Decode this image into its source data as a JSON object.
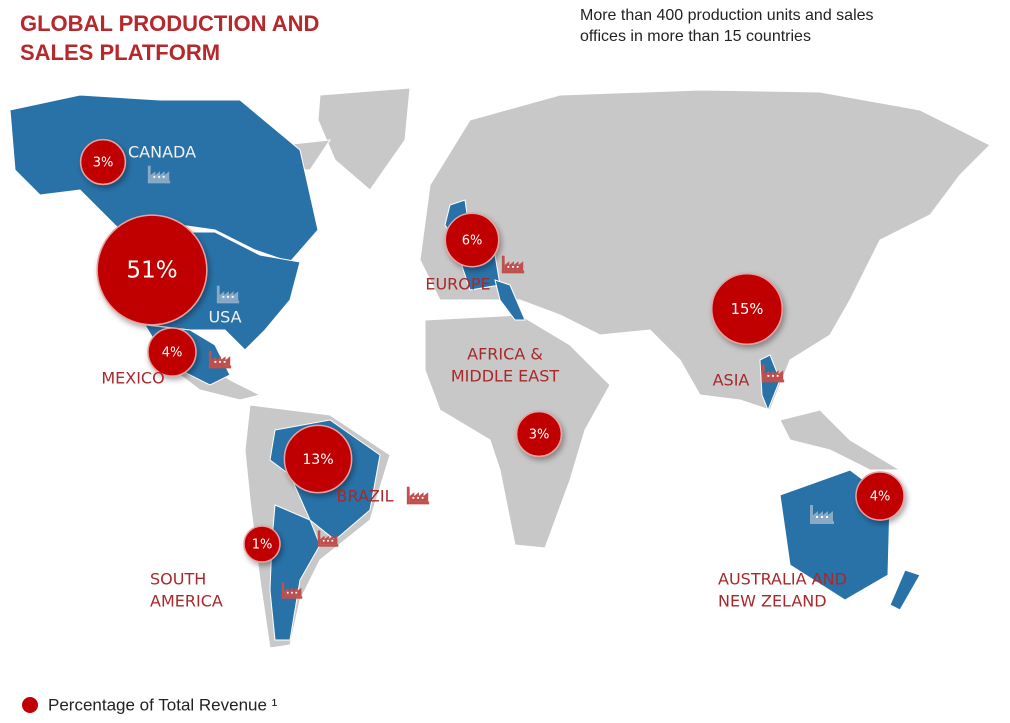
{
  "header": {
    "title_lines": [
      "GLOBAL PRODUCTION AND",
      "SALES PLATFORM"
    ],
    "subtitle_lines": [
      "More than 400 production units and sales",
      "offices in more than 15 countries"
    ]
  },
  "regions": [
    {
      "label_lines": [
        "CANADA"
      ],
      "value": 3,
      "value_label": "3%"
    },
    {
      "label_lines": [
        "USA"
      ],
      "value": 51,
      "value_label": "51%"
    },
    {
      "label_lines": [
        "MEXICO"
      ],
      "value": 4,
      "value_label": "4%"
    },
    {
      "label_lines": [
        "BRAZIL"
      ],
      "value": 13,
      "value_label": "13%"
    },
    {
      "label_lines": [
        "SOUTH",
        "AMERICA"
      ],
      "value": 1,
      "value_label": "1%"
    },
    {
      "label_lines": [
        "EUROPE"
      ],
      "value": 6,
      "value_label": "6%"
    },
    {
      "label_lines": [
        "AFRICA &",
        "MIDDLE EAST"
      ],
      "value": 3,
      "value_label": "3%"
    },
    {
      "label_lines": [
        "ASIA"
      ],
      "value": 15,
      "value_label": "15%"
    },
    {
      "label_lines": [
        "AUSTRALIA AND",
        "NEW ZELAND"
      ],
      "value": 4,
      "value_label": "4%"
    }
  ],
  "legend": {
    "label": "Percentage of Total Revenue ¹"
  }
}
